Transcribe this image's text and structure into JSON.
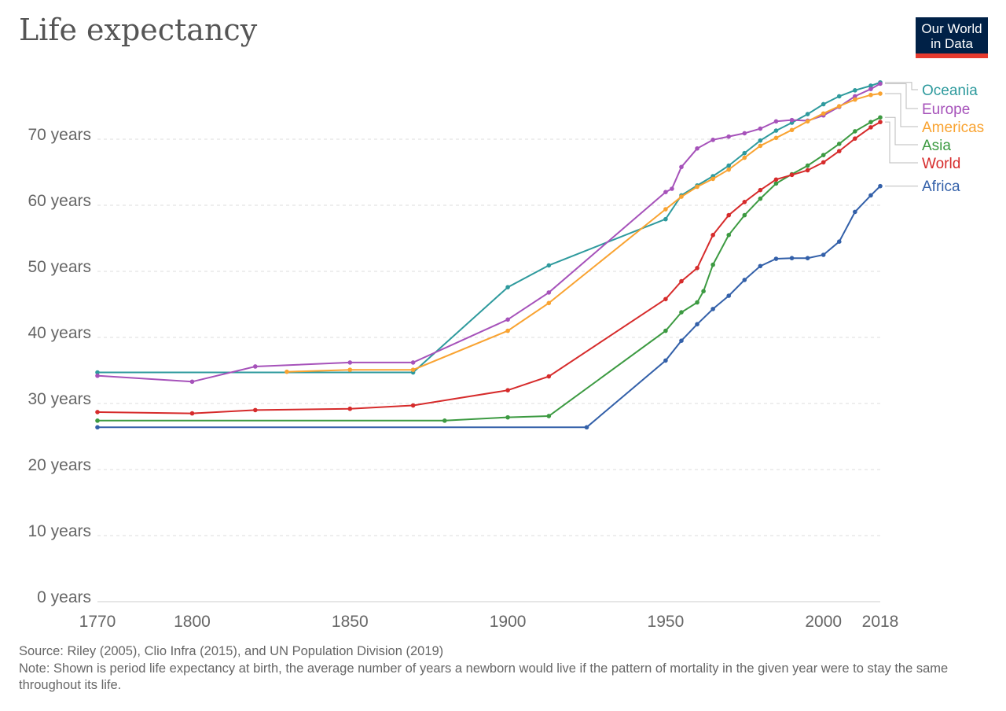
{
  "header": {
    "title": "Life expectancy",
    "logo_text": "Our World in Data"
  },
  "footer": {
    "source": "Source: Riley (2005), Clio Infra (2015), and UN Population Division (2019)",
    "note": "Note: Shown is period life expectancy at birth, the average number of years a newborn would live if the pattern of mortality in the given year were to stay the same throughout its life."
  },
  "chart_data": {
    "type": "line",
    "title": "Life expectancy",
    "xlim": [
      1770,
      2018
    ],
    "ylim": [
      0,
      79
    ],
    "x_ticks": [
      1770,
      1800,
      1850,
      1900,
      1950,
      2000,
      2018
    ],
    "y_ticks": [
      0,
      10,
      20,
      30,
      40,
      50,
      60,
      70
    ],
    "y_tick_labels": [
      "0 years",
      "10 years",
      "20 years",
      "30 years",
      "40 years",
      "50 years",
      "60 years",
      "70 years"
    ],
    "grid": "horizontal dashed",
    "legend": "right, labels at line ends",
    "series": [
      {
        "name": "Oceania",
        "color": "#2e9a9d",
        "points": [
          [
            1770,
            34.7
          ],
          [
            1870,
            34.7
          ],
          [
            1900,
            47.6
          ],
          [
            1913,
            50.9
          ],
          [
            1950,
            57.9
          ],
          [
            1955,
            61.5
          ],
          [
            1960,
            63.0
          ],
          [
            1965,
            64.4
          ],
          [
            1970,
            66.0
          ],
          [
            1975,
            67.9
          ],
          [
            1980,
            69.8
          ],
          [
            1985,
            71.3
          ],
          [
            1990,
            72.5
          ],
          [
            1995,
            73.8
          ],
          [
            2000,
            75.3
          ],
          [
            2005,
            76.5
          ],
          [
            2010,
            77.4
          ],
          [
            2015,
            78.1
          ],
          [
            2018,
            78.6
          ]
        ]
      },
      {
        "name": "Europe",
        "color": "#a652ba",
        "points": [
          [
            1770,
            34.2
          ],
          [
            1800,
            33.3
          ],
          [
            1820,
            35.6
          ],
          [
            1850,
            36.2
          ],
          [
            1870,
            36.2
          ],
          [
            1900,
            42.7
          ],
          [
            1913,
            46.8
          ],
          [
            1950,
            62.0
          ],
          [
            1952,
            62.5
          ],
          [
            1955,
            65.8
          ],
          [
            1960,
            68.6
          ],
          [
            1965,
            69.9
          ],
          [
            1970,
            70.4
          ],
          [
            1975,
            70.9
          ],
          [
            1980,
            71.6
          ],
          [
            1985,
            72.7
          ],
          [
            1990,
            72.9
          ],
          [
            1995,
            72.8
          ],
          [
            2000,
            73.6
          ],
          [
            2005,
            74.9
          ],
          [
            2010,
            76.5
          ],
          [
            2015,
            77.6
          ],
          [
            2018,
            78.4
          ]
        ]
      },
      {
        "name": "Americas",
        "color": "#f9a331",
        "points": [
          [
            1830,
            34.8
          ],
          [
            1850,
            35.1
          ],
          [
            1870,
            35.1
          ],
          [
            1900,
            41.0
          ],
          [
            1913,
            45.2
          ],
          [
            1950,
            59.4
          ],
          [
            1955,
            61.3
          ],
          [
            1960,
            62.8
          ],
          [
            1965,
            64.0
          ],
          [
            1970,
            65.4
          ],
          [
            1975,
            67.2
          ],
          [
            1980,
            69.0
          ],
          [
            1985,
            70.2
          ],
          [
            1990,
            71.4
          ],
          [
            1995,
            72.7
          ],
          [
            2000,
            73.9
          ],
          [
            2005,
            75.0
          ],
          [
            2010,
            76.0
          ],
          [
            2015,
            76.7
          ],
          [
            2018,
            76.9
          ]
        ]
      },
      {
        "name": "Asia",
        "color": "#3c9a41",
        "points": [
          [
            1770,
            27.4
          ],
          [
            1880,
            27.4
          ],
          [
            1900,
            27.9
          ],
          [
            1913,
            28.1
          ],
          [
            1950,
            41.0
          ],
          [
            1955,
            43.8
          ],
          [
            1960,
            45.3
          ],
          [
            1962,
            47.0
          ],
          [
            1965,
            51.0
          ],
          [
            1970,
            55.5
          ],
          [
            1975,
            58.5
          ],
          [
            1980,
            61.0
          ],
          [
            1985,
            63.3
          ],
          [
            1990,
            64.7
          ],
          [
            1995,
            66.0
          ],
          [
            2000,
            67.6
          ],
          [
            2005,
            69.3
          ],
          [
            2010,
            71.2
          ],
          [
            2015,
            72.6
          ],
          [
            2018,
            73.3
          ]
        ]
      },
      {
        "name": "World",
        "color": "#d62b2b",
        "points": [
          [
            1770,
            28.7
          ],
          [
            1800,
            28.5
          ],
          [
            1820,
            29.0
          ],
          [
            1850,
            29.2
          ],
          [
            1870,
            29.7
          ],
          [
            1900,
            32.0
          ],
          [
            1913,
            34.1
          ],
          [
            1950,
            45.8
          ],
          [
            1955,
            48.5
          ],
          [
            1960,
            50.5
          ],
          [
            1965,
            55.5
          ],
          [
            1970,
            58.5
          ],
          [
            1975,
            60.5
          ],
          [
            1980,
            62.3
          ],
          [
            1985,
            63.9
          ],
          [
            1990,
            64.6
          ],
          [
            1995,
            65.3
          ],
          [
            2000,
            66.5
          ],
          [
            2005,
            68.2
          ],
          [
            2010,
            70.1
          ],
          [
            2015,
            71.8
          ],
          [
            2018,
            72.6
          ]
        ]
      },
      {
        "name": "Africa",
        "color": "#3360a9",
        "points": [
          [
            1770,
            26.4
          ],
          [
            1925,
            26.4
          ],
          [
            1950,
            36.5
          ],
          [
            1955,
            39.5
          ],
          [
            1960,
            42.0
          ],
          [
            1965,
            44.3
          ],
          [
            1970,
            46.3
          ],
          [
            1975,
            48.7
          ],
          [
            1980,
            50.8
          ],
          [
            1985,
            51.9
          ],
          [
            1990,
            52.0
          ],
          [
            1995,
            52.0
          ],
          [
            2000,
            52.5
          ],
          [
            2005,
            54.5
          ],
          [
            2010,
            59.0
          ],
          [
            2015,
            61.5
          ],
          [
            2018,
            62.9
          ]
        ]
      }
    ]
  }
}
